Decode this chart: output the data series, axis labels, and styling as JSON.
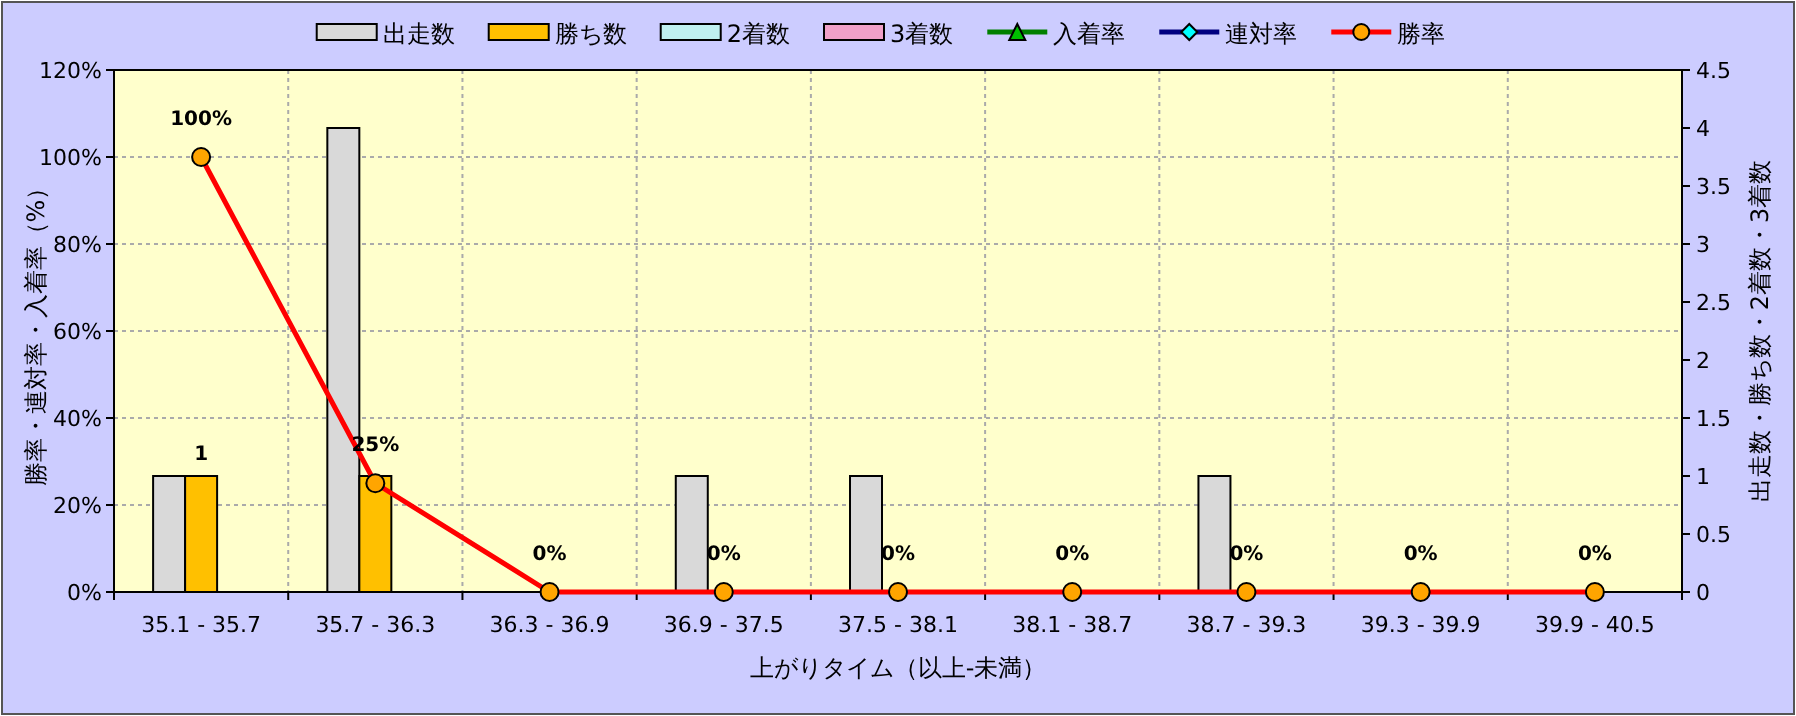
{
  "chart_data": {
    "type": "bar",
    "xlabel": "上がりタイム（以上-未満）",
    "ylabel": "勝率・連対率・入着率（%）",
    "y2label": "出走数・勝ち数・2着数・3着数",
    "categories": [
      "35.1 - 35.7",
      "35.7 - 36.3",
      "36.3 - 36.9",
      "36.9 - 37.5",
      "37.5 - 38.1",
      "38.1 - 38.7",
      "38.7 - 39.3",
      "39.3 - 39.9",
      "39.9 - 40.5"
    ],
    "series": [
      {
        "name": "出走数",
        "axis": "y2",
        "color": "#d9d9d9",
        "values": [
          1,
          4,
          0,
          1,
          1,
          0,
          1,
          0,
          0
        ]
      },
      {
        "name": "勝ち数",
        "axis": "y2",
        "color": "#ffc000",
        "values": [
          1,
          1,
          0,
          0,
          0,
          0,
          0,
          0,
          0
        ],
        "value_labels": [
          "1",
          null,
          null,
          null,
          null,
          null,
          null,
          null,
          null
        ]
      },
      {
        "name": "2着数",
        "axis": "y2",
        "color": "#c0f0f0",
        "values": [
          0,
          0,
          0,
          0,
          0,
          0,
          0,
          0,
          0
        ]
      },
      {
        "name": "3着数",
        "axis": "y2",
        "color": "#f0a0c8",
        "values": [
          0,
          0,
          0,
          0,
          0,
          0,
          0,
          0,
          0
        ]
      },
      {
        "name": "入着率",
        "type": "line",
        "color": "#008000",
        "marker": "triangle",
        "values": [
          null,
          null,
          null,
          null,
          null,
          null,
          null,
          null,
          null
        ]
      },
      {
        "name": "連対率",
        "type": "line",
        "color": "#000080",
        "marker": "diamond",
        "values": [
          null,
          null,
          null,
          null,
          null,
          null,
          null,
          null,
          null
        ]
      },
      {
        "name": "勝率",
        "type": "line",
        "color": "#ff0000",
        "marker": "circle",
        "values": [
          100,
          25,
          0,
          0,
          0,
          0,
          0,
          0,
          0
        ],
        "value_labels": [
          "100%",
          "25%",
          "0%",
          "0%",
          "0%",
          "0%",
          "0%",
          "0%",
          "0%"
        ]
      }
    ],
    "ylim": [
      0,
      120
    ],
    "yticks": [
      {
        "value": 0,
        "label": "0%"
      },
      {
        "value": 20,
        "label": "20%"
      },
      {
        "value": 40,
        "label": "40%"
      },
      {
        "value": 60,
        "label": "60%"
      },
      {
        "value": 80,
        "label": "80%"
      },
      {
        "value": 100,
        "label": "100%"
      },
      {
        "value": 120,
        "label": "120%"
      }
    ],
    "y2lim": [
      0,
      4.5
    ],
    "y2ticks": [
      0,
      0.5,
      1,
      1.5,
      2,
      2.5,
      3,
      3.5,
      4,
      4.5
    ],
    "grid": true,
    "legend": "top"
  }
}
